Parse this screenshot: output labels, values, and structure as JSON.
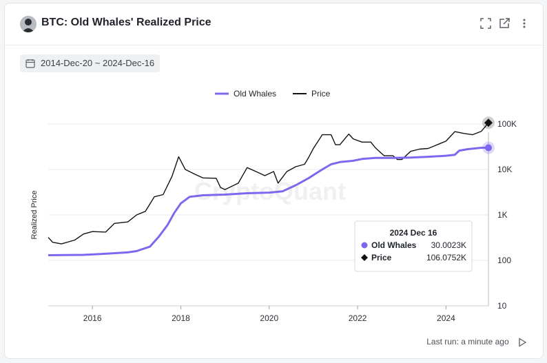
{
  "title": "BTC: Old Whales' Realized Price",
  "date_range": "2014-Dec-20 ~ 2024-Dec-16",
  "footer": "Last run: a minute ago",
  "watermark": "CryptoQuant",
  "icons": [
    "user-avatar",
    "expand-icon",
    "share-icon",
    "more-icon",
    "calendar-icon",
    "play-icon"
  ],
  "colors": {
    "old_whales": "#7b68ee",
    "price": "#111111",
    "grid": "#e8e9eb"
  },
  "tooltip": {
    "date": "2024 Dec 16",
    "rows": [
      {
        "label": "Old Whales",
        "value": "30.0023K"
      },
      {
        "label": "Price",
        "value": "106.0752K"
      }
    ]
  },
  "chart_data": {
    "type": "line",
    "ylabel": "Realized Price",
    "yscale": "log",
    "ylim": [
      10,
      200000
    ],
    "xlim": [
      2015.0,
      2024.96
    ],
    "xticks": [
      "2016",
      "2018",
      "2020",
      "2022",
      "2024"
    ],
    "yticks": [
      {
        "value": 100000,
        "label": "100K"
      },
      {
        "value": 10000,
        "label": "10K"
      },
      {
        "value": 1000,
        "label": "1K"
      },
      {
        "value": 100,
        "label": "100"
      },
      {
        "value": 10,
        "label": "10"
      }
    ],
    "legend_position": "top-center",
    "series": [
      {
        "name": "Old Whales",
        "x": [
          2015.0,
          2015.8,
          2016.3,
          2016.8,
          2017.0,
          2017.3,
          2017.5,
          2017.7,
          2017.85,
          2018.0,
          2018.2,
          2018.5,
          2019.0,
          2019.5,
          2020.0,
          2020.3,
          2020.6,
          2020.9,
          2021.0,
          2021.2,
          2021.4,
          2021.6,
          2021.9,
          2022.1,
          2022.4,
          2022.8,
          2023.2,
          2023.6,
          2024.0,
          2024.2,
          2024.3,
          2024.5,
          2024.8,
          2024.96
        ],
        "y": [
          130,
          132,
          140,
          150,
          160,
          200,
          330,
          600,
          1100,
          1800,
          2500,
          2700,
          2800,
          3000,
          3100,
          3300,
          4500,
          6500,
          7500,
          10000,
          13000,
          14500,
          15500,
          17000,
          18000,
          18000,
          18200,
          19000,
          20000,
          21000,
          26000,
          28000,
          30000,
          30002
        ]
      },
      {
        "name": "Price",
        "x": [
          2015.0,
          2015.1,
          2015.3,
          2015.6,
          2015.8,
          2016.0,
          2016.3,
          2016.5,
          2016.8,
          2017.0,
          2017.2,
          2017.4,
          2017.6,
          2017.8,
          2017.95,
          2018.1,
          2018.3,
          2018.5,
          2018.8,
          2018.9,
          2019.0,
          2019.3,
          2019.5,
          2019.7,
          2019.9,
          2020.1,
          2020.2,
          2020.4,
          2020.6,
          2020.8,
          2020.9,
          2021.0,
          2021.2,
          2021.4,
          2021.5,
          2021.6,
          2021.8,
          2021.9,
          2022.1,
          2022.3,
          2022.4,
          2022.6,
          2022.8,
          2022.9,
          2023.0,
          2023.2,
          2023.4,
          2023.6,
          2023.8,
          2024.0,
          2024.2,
          2024.4,
          2024.6,
          2024.8,
          2024.96
        ],
        "y": [
          320,
          250,
          230,
          280,
          380,
          430,
          420,
          650,
          700,
          1000,
          1200,
          2500,
          2800,
          7000,
          19000,
          10000,
          8000,
          6500,
          6400,
          4000,
          3600,
          5000,
          11000,
          9000,
          7300,
          9000,
          5000,
          9000,
          11500,
          13000,
          19000,
          29000,
          58000,
          58000,
          35000,
          35000,
          60000,
          47000,
          40000,
          40000,
          30000,
          20000,
          20000,
          16500,
          16500,
          25000,
          28000,
          29000,
          35000,
          42000,
          68000,
          62000,
          58000,
          69000,
          106075
        ]
      }
    ]
  }
}
